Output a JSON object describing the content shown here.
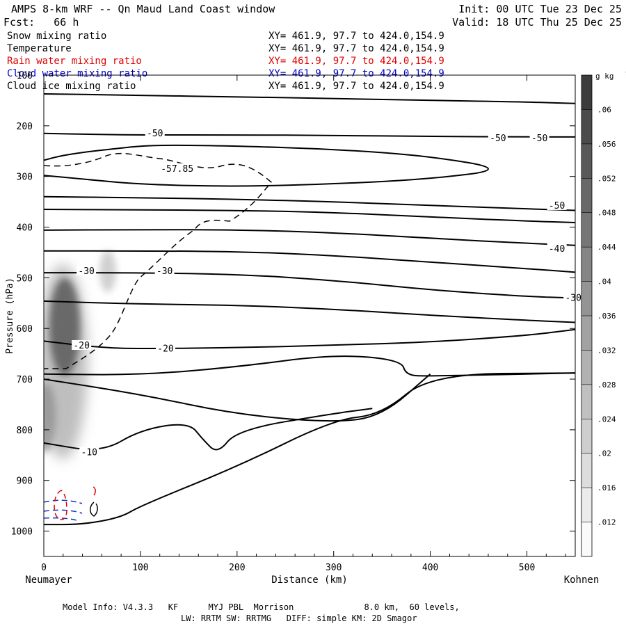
{
  "header": {
    "title": "AMPS 8-km WRF -- Qn Maud Land Coast window",
    "forecast": "Fcst:   66 h",
    "init": "Init: 00 UTC Tue 23 Dec 25",
    "valid": "Valid: 18 UTC Thu 25 Dec 25"
  },
  "legend": [
    {
      "name": "Snow mixing ratio",
      "xy": "XY= 461.9, 97.7 to 424.0,154.9",
      "color": "#000000"
    },
    {
      "name": "Temperature",
      "xy": "XY= 461.9, 97.7 to 424.0,154.9",
      "color": "#000000"
    },
    {
      "name": "Rain water mixing ratio",
      "xy": "XY= 461.9, 97.7 to 424.0,154.9",
      "color": "#e00000"
    },
    {
      "name": "Cloud water mixing ratio",
      "xy": "XY= 461.9, 97.7 to 424.0,154.9",
      "color": "#0000c8"
    },
    {
      "name": "Cloud ice mixing ratio",
      "xy": "XY= 461.9, 97.7 to 424.0,154.9",
      "color": "#000000"
    }
  ],
  "chart_data": {
    "type": "cross-section contour",
    "xlabel": "Distance (km)",
    "ylabel": "Pressure (hPa)",
    "xlim": [
      0,
      550
    ],
    "ylim": [
      1050,
      100
    ],
    "xticks": [
      0,
      100,
      200,
      300,
      400,
      500
    ],
    "yticks": [
      100,
      200,
      300,
      400,
      500,
      600,
      700,
      800,
      900,
      1000
    ],
    "left_endpoint": "Neumayer",
    "right_endpoint": "Kohnen",
    "colorbar": {
      "unit": "g kg",
      "unit_exp": "-1",
      "ticks": [
        ".06",
        ".056",
        ".052",
        ".048",
        ".044",
        ".04",
        ".036",
        ".032",
        ".028",
        ".024",
        ".02",
        ".016",
        ".012"
      ]
    },
    "contour_labels": [
      {
        "text": "-50",
        "x": 115,
        "p": 215
      },
      {
        "text": "-50",
        "x": 470,
        "p": 225
      },
      {
        "text": "-50",
        "x": 513,
        "p": 225
      },
      {
        "text": "-57.85",
        "x": 138,
        "p": 285
      },
      {
        "text": "-50",
        "x": 531,
        "p": 358
      },
      {
        "text": "-40",
        "x": 531,
        "p": 443
      },
      {
        "text": "-30",
        "x": 44,
        "p": 487
      },
      {
        "text": "-30",
        "x": 125,
        "p": 487
      },
      {
        "text": "-30",
        "x": 548,
        "p": 540
      },
      {
        "text": "-20",
        "x": 39,
        "p": 634
      },
      {
        "text": "-20",
        "x": 126,
        "p": 640
      },
      {
        "text": "-10",
        "x": 47,
        "p": 845
      }
    ],
    "isotherm_lines": [
      {
        "id": "top",
        "x": [
          0,
          100,
          200,
          300,
          400,
          500,
          550
        ],
        "p": [
          137,
          140,
          143,
          146,
          150,
          153,
          156
        ]
      },
      {
        "id": "m50",
        "x": [
          0,
          50,
          100,
          200,
          300,
          400,
          500,
          550
        ],
        "p": [
          215,
          217,
          218,
          218,
          219,
          221,
          222,
          222
        ]
      },
      {
        "id": "m57_85",
        "x": [
          0,
          20,
          50,
          80,
          100,
          130,
          200,
          300,
          400,
          480,
          400,
          300,
          200,
          100,
          40,
          0
        ],
        "p": [
          268,
          258,
          250,
          244,
          240,
          238,
          240,
          246,
          260,
          286,
          305,
          315,
          320,
          316,
          305,
          298
        ]
      },
      {
        "id": "m50b",
        "x": [
          0,
          100,
          200,
          300,
          400,
          500,
          550
        ],
        "p": [
          340,
          342,
          345,
          350,
          357,
          364,
          367
        ]
      },
      {
        "id": "l370",
        "x": [
          0,
          100,
          200,
          300,
          400,
          500,
          550
        ],
        "p": [
          365,
          366,
          367,
          371,
          380,
          388,
          391
        ]
      },
      {
        "id": "l400",
        "x": [
          0,
          100,
          200,
          300,
          400,
          500,
          550
        ],
        "p": [
          406,
          405,
          405,
          411,
          422,
          432,
          436
        ]
      },
      {
        "id": "m40",
        "x": [
          0,
          100,
          200,
          300,
          400,
          500,
          550
        ],
        "p": [
          447,
          447,
          448,
          456,
          469,
          482,
          489
        ]
      },
      {
        "id": "m30",
        "x": [
          0,
          100,
          200,
          300,
          400,
          500,
          550
        ],
        "p": [
          490,
          490,
          493,
          505,
          524,
          537,
          540
        ]
      },
      {
        "id": "l540",
        "x": [
          0,
          100,
          200,
          300,
          400,
          500,
          550
        ],
        "p": [
          546,
          552,
          554,
          562,
          574,
          584,
          588
        ]
      },
      {
        "id": "m20",
        "x": [
          0,
          60,
          100,
          200,
          300,
          400,
          500,
          550
        ],
        "p": [
          625,
          638,
          640,
          638,
          633,
          627,
          614,
          602
        ]
      },
      {
        "id": "m20b",
        "x": [
          0,
          100,
          200,
          300,
          370,
          375,
          400,
          550
        ],
        "p": [
          690,
          692,
          676,
          651,
          662,
          693,
          694,
          688
        ]
      },
      {
        "id": "l700",
        "x": [
          0,
          100,
          200,
          300,
          350,
          400
        ],
        "p": [
          700,
          730,
          770,
          786,
          773,
          690
        ]
      },
      {
        "id": "m10",
        "x": [
          0,
          60,
          100,
          150,
          165,
          180,
          200,
          300,
          340
        ],
        "p": [
          826,
          845,
          800,
          785,
          820,
          848,
          800,
          768,
          758
        ]
      },
      {
        "id": "surface",
        "x": [
          0,
          40,
          80,
          100,
          200,
          300,
          350,
          400,
          550
        ],
        "p": [
          987,
          987,
          973,
          950,
          873,
          780,
          770,
          690,
          688
        ]
      }
    ],
    "cloud_ice_max": 0.06,
    "snow_shading_region": {
      "x_range": [
        0,
        80
      ],
      "p_range": [
        450,
        800
      ]
    }
  },
  "footer": {
    "line1": "Model Info: V4.3.3   KF      MYJ PBL  Morrison              8.0 km,  60 levels,",
    "line2": "LW: RRTM SW: RRTMG   DIFF: simple KM: 2D Smagor"
  }
}
